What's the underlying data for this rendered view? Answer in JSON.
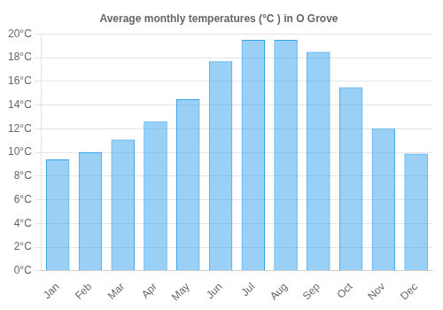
{
  "chart_data": {
    "type": "bar",
    "title": "Average monthly temperatures (°C ) in O Grove",
    "categories": [
      "Jan",
      "Feb",
      "Mar",
      "Apr",
      "May",
      "Jun",
      "Jul",
      "Aug",
      "Sep",
      "Oct",
      "Nov",
      "Dec"
    ],
    "values": [
      9.4,
      10.0,
      11.1,
      12.6,
      14.5,
      17.7,
      19.5,
      19.5,
      18.5,
      15.5,
      12.0,
      9.9
    ],
    "ylim": [
      0,
      20
    ],
    "yticks": [
      {
        "value": 0,
        "label": "0°C"
      },
      {
        "value": 2,
        "label": "2°C"
      },
      {
        "value": 4,
        "label": "4°C"
      },
      {
        "value": 6,
        "label": "6°C"
      },
      {
        "value": 8,
        "label": "8°C"
      },
      {
        "value": 10,
        "label": "10°C"
      },
      {
        "value": 12,
        "label": "12°C"
      },
      {
        "value": 14,
        "label": "14°C"
      },
      {
        "value": 16,
        "label": "16°C"
      },
      {
        "value": 18,
        "label": "18°C"
      },
      {
        "value": 20,
        "label": "20°C"
      }
    ],
    "grid": true
  }
}
